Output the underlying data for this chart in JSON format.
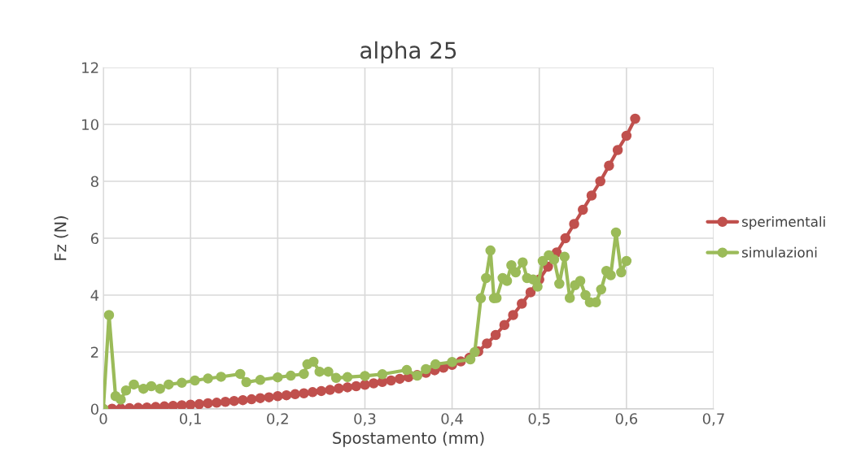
{
  "chart_data": {
    "type": "line",
    "title": "alpha 25",
    "xlabel": "Spostamento (mm)",
    "ylabel": "Fz (N)",
    "xlim": [
      0,
      0.7
    ],
    "xticks": [
      {
        "value": 0,
        "label": "0"
      },
      {
        "value": 0.1,
        "label": "0,1"
      },
      {
        "value": 0.2,
        "label": "0,2"
      },
      {
        "value": 0.3,
        "label": "0,3"
      },
      {
        "value": 0.4,
        "label": "0,4"
      },
      {
        "value": 0.5,
        "label": "0,5"
      },
      {
        "value": 0.6,
        "label": "0,6"
      },
      {
        "value": 0.7,
        "label": "0,7"
      }
    ],
    "ylim": [
      0,
      12
    ],
    "yticks": [
      0,
      2,
      4,
      6,
      8,
      10,
      12
    ],
    "grid": true,
    "legend": "right",
    "marker": "circle",
    "line_style": "solid",
    "series": [
      {
        "name": "sperimentali",
        "color": "#c0504d",
        "x": [
          0,
          0.01,
          0.02,
          0.03,
          0.04,
          0.05,
          0.06,
          0.07,
          0.08,
          0.09,
          0.1,
          0.11,
          0.12,
          0.13,
          0.14,
          0.15,
          0.16,
          0.17,
          0.18,
          0.19,
          0.2,
          0.21,
          0.22,
          0.23,
          0.24,
          0.25,
          0.26,
          0.27,
          0.28,
          0.29,
          0.3,
          0.31,
          0.32,
          0.33,
          0.34,
          0.35,
          0.36,
          0.37,
          0.38,
          0.39,
          0.4,
          0.41,
          0.42,
          0.43,
          0.44,
          0.45,
          0.46,
          0.47,
          0.48,
          0.49,
          0.5,
          0.51,
          0.52,
          0.53,
          0.54,
          0.55,
          0.56,
          0.57,
          0.58,
          0.59,
          0.6,
          0.61
        ],
        "values": [
          0,
          0.01,
          0.02,
          0.03,
          0.04,
          0.05,
          0.07,
          0.09,
          0.11,
          0.13,
          0.15,
          0.17,
          0.2,
          0.22,
          0.25,
          0.28,
          0.31,
          0.34,
          0.38,
          0.41,
          0.45,
          0.48,
          0.52,
          0.55,
          0.59,
          0.63,
          0.67,
          0.72,
          0.76,
          0.8,
          0.85,
          0.9,
          0.95,
          1.0,
          1.06,
          1.12,
          1.19,
          1.27,
          1.36,
          1.45,
          1.55,
          1.67,
          1.8,
          2.02,
          2.3,
          2.6,
          2.95,
          3.3,
          3.7,
          4.1,
          4.55,
          5.0,
          5.5,
          6.0,
          6.5,
          7.0,
          7.5,
          8.0,
          8.55,
          9.1,
          9.6,
          10.2
        ]
      },
      {
        "name": "simulazioni",
        "color": "#9bbb59",
        "x": [
          0,
          0.0065,
          0.014,
          0.02,
          0.026,
          0.035,
          0.046,
          0.055,
          0.065,
          0.075,
          0.09,
          0.105,
          0.12,
          0.135,
          0.157,
          0.164,
          0.18,
          0.2,
          0.215,
          0.23,
          0.234,
          0.241,
          0.248,
          0.258,
          0.267,
          0.28,
          0.3,
          0.32,
          0.348,
          0.36,
          0.37,
          0.381,
          0.4,
          0.421,
          0.426,
          0.433,
          0.439,
          0.444,
          0.448,
          0.451,
          0.458,
          0.463,
          0.468,
          0.473,
          0.481,
          0.486,
          0.493,
          0.498,
          0.504,
          0.511,
          0.517,
          0.523,
          0.529,
          0.535,
          0.541,
          0.547,
          0.553,
          0.558,
          0.565,
          0.571,
          0.577,
          0.582,
          0.588,
          0.594,
          0.6
        ],
        "values": [
          0,
          3.3,
          0.45,
          0.33,
          0.65,
          0.86,
          0.71,
          0.8,
          0.71,
          0.86,
          0.92,
          1.0,
          1.07,
          1.13,
          1.23,
          0.94,
          1.02,
          1.11,
          1.17,
          1.23,
          1.57,
          1.66,
          1.31,
          1.31,
          1.09,
          1.12,
          1.16,
          1.22,
          1.37,
          1.17,
          1.4,
          1.57,
          1.65,
          1.74,
          2.0,
          3.89,
          4.6,
          5.57,
          3.89,
          3.9,
          4.6,
          4.5,
          5.05,
          4.8,
          5.15,
          4.6,
          4.55,
          4.3,
          5.2,
          5.4,
          5.25,
          4.4,
          5.35,
          3.9,
          4.35,
          4.5,
          4.0,
          3.75,
          3.75,
          4.2,
          4.85,
          4.7,
          6.2,
          4.8,
          5.2
        ]
      }
    ]
  }
}
